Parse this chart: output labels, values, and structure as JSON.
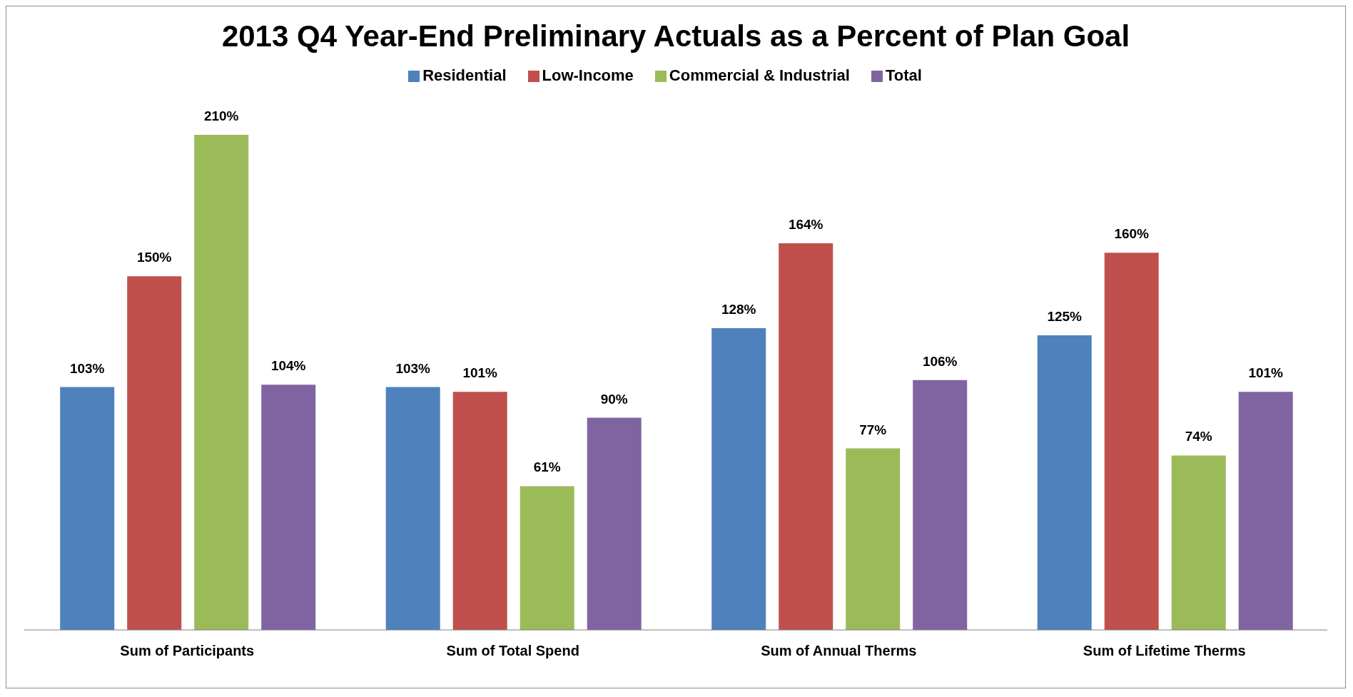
{
  "chart_data": {
    "type": "bar",
    "title": "2013 Q4 Year-End Preliminary Actuals as a Percent of Plan Goal",
    "categories": [
      "Sum of Participants",
      "Sum of Total Spend",
      "Sum of Annual Therms",
      "Sum of Lifetime Therms"
    ],
    "series": [
      {
        "name": "Residential",
        "color": "#4f81bd",
        "values": [
          103,
          103,
          128,
          125
        ],
        "value_labels": [
          "103%",
          "103%",
          "128%",
          "125%"
        ]
      },
      {
        "name": "Low-Income",
        "color": "#c0504d",
        "values": [
          150,
          101,
          164,
          160
        ],
        "value_labels": [
          "150%",
          "101%",
          "164%",
          "160%"
        ]
      },
      {
        "name": "Commercial & Industrial",
        "color": "#9bbb59",
        "values": [
          210,
          61,
          77,
          74
        ],
        "value_labels": [
          "210%",
          "61%",
          "77%",
          "74%"
        ]
      },
      {
        "name": "Total",
        "color": "#8064a2",
        "values": [
          104,
          90,
          106,
          101
        ],
        "value_labels": [
          "104%",
          "90%",
          "106%",
          "101%"
        ]
      }
    ],
    "legend": "top",
    "grid": false
  }
}
